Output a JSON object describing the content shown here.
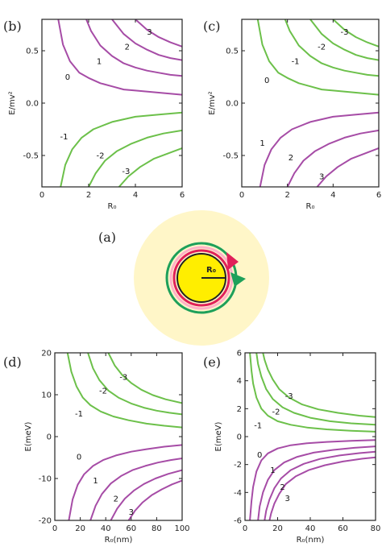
{
  "colors": {
    "purple": "#a64ca6",
    "green": "#6cc04a",
    "axis": "#222222",
    "halo": "#fff6c8",
    "core": "#ffee00",
    "ring_red": "#e0205a",
    "ring_pink": "#ffb0c8",
    "ring_green": "#1ea05a"
  },
  "diagram": {
    "label": "(a)",
    "radius_label": "R₀"
  },
  "chart_data": [
    {
      "type": "line",
      "panel_label": "(b)",
      "xlabel": "R₀",
      "ylabel": "E/mv²",
      "xlim": [
        0,
        6
      ],
      "ylim": [
        -0.8,
        0.8
      ],
      "xticks": [
        0,
        2,
        4,
        6
      ],
      "xtick_labels": [
        "0",
        "2",
        "4",
        "6"
      ],
      "yticks": [
        -0.5,
        0,
        0.5
      ],
      "ytick_labels": [
        "-0.5",
        "0.0",
        "0.5"
      ],
      "series": [
        {
          "label": "0",
          "color": "purple",
          "x": [
            0.7,
            0.9,
            1.2,
            1.6,
            2.0,
            2.5,
            3.0,
            3.5,
            4.0,
            5.0,
            6.0
          ],
          "y": [
            0.8,
            0.56,
            0.4,
            0.29,
            0.24,
            0.19,
            0.16,
            0.13,
            0.12,
            0.1,
            0.08
          ]
        },
        {
          "label": "1",
          "color": "purple",
          "x": [
            1.9,
            2.1,
            2.5,
            3.0,
            3.5,
            4.0,
            4.5,
            5.0,
            5.5,
            6.0
          ],
          "y": [
            0.8,
            0.69,
            0.55,
            0.45,
            0.38,
            0.34,
            0.31,
            0.29,
            0.27,
            0.26
          ]
        },
        {
          "label": "2",
          "color": "purple",
          "x": [
            3.0,
            3.5,
            4.0,
            4.5,
            5.0,
            5.5,
            6.0
          ],
          "y": [
            0.8,
            0.66,
            0.57,
            0.51,
            0.46,
            0.43,
            0.41
          ]
        },
        {
          "label": "3",
          "color": "purple",
          "x": [
            4.0,
            4.5,
            5.0,
            5.5,
            6.0
          ],
          "y": [
            0.8,
            0.7,
            0.63,
            0.58,
            0.54
          ]
        },
        {
          "label": "-1",
          "color": "green",
          "x": [
            0.8,
            1.0,
            1.3,
            1.7,
            2.2,
            3.0,
            4.0,
            5.0,
            6.0
          ],
          "y": [
            -0.8,
            -0.59,
            -0.44,
            -0.33,
            -0.25,
            -0.18,
            -0.13,
            -0.11,
            -0.09
          ]
        },
        {
          "label": "-2",
          "color": "green",
          "x": [
            2.0,
            2.3,
            2.7,
            3.2,
            3.8,
            4.5,
            5.2,
            6.0
          ],
          "y": [
            -0.8,
            -0.67,
            -0.55,
            -0.46,
            -0.39,
            -0.33,
            -0.29,
            -0.26
          ]
        },
        {
          "label": "-3",
          "color": "green",
          "x": [
            3.3,
            3.7,
            4.2,
            4.8,
            5.4,
            6.0
          ],
          "y": [
            -0.8,
            -0.7,
            -0.61,
            -0.53,
            -0.48,
            -0.43
          ]
        }
      ],
      "curve_labels": [
        {
          "text": "3",
          "x": 4.6,
          "y": 0.68
        },
        {
          "text": "2",
          "x": 3.65,
          "y": 0.54
        },
        {
          "text": "1",
          "x": 2.45,
          "y": 0.4
        },
        {
          "text": "0",
          "x": 1.1,
          "y": 0.25
        },
        {
          "text": "-1",
          "x": 0.95,
          "y": -0.32
        },
        {
          "text": "-2",
          "x": 2.5,
          "y": -0.5
        },
        {
          "text": "-3",
          "x": 3.6,
          "y": -0.65
        }
      ]
    },
    {
      "type": "line",
      "panel_label": "(c)",
      "xlabel": "R₀",
      "ylabel": "E/mv²",
      "xlim": [
        0,
        6
      ],
      "ylim": [
        -0.8,
        0.8
      ],
      "xticks": [
        0,
        2,
        4,
        6
      ],
      "xtick_labels": [
        "0",
        "2",
        "4",
        "6"
      ],
      "yticks": [
        -0.5,
        0,
        0.5
      ],
      "ytick_labels": [
        "-0.5",
        "0.0",
        "0.5"
      ],
      "series": [
        {
          "label": "0",
          "color": "green",
          "x": [
            0.7,
            0.9,
            1.2,
            1.6,
            2.0,
            2.5,
            3.0,
            3.5,
            4.0,
            5.0,
            6.0
          ],
          "y": [
            0.8,
            0.56,
            0.4,
            0.29,
            0.24,
            0.19,
            0.16,
            0.13,
            0.12,
            0.1,
            0.08
          ]
        },
        {
          "label": "-1",
          "color": "green",
          "x": [
            1.9,
            2.1,
            2.5,
            3.0,
            3.5,
            4.0,
            4.5,
            5.0,
            5.5,
            6.0
          ],
          "y": [
            0.8,
            0.69,
            0.55,
            0.45,
            0.38,
            0.34,
            0.31,
            0.29,
            0.27,
            0.26
          ]
        },
        {
          "label": "-2",
          "color": "green",
          "x": [
            3.0,
            3.5,
            4.0,
            4.5,
            5.0,
            5.5,
            6.0
          ],
          "y": [
            0.8,
            0.66,
            0.57,
            0.51,
            0.46,
            0.43,
            0.41
          ]
        },
        {
          "label": "-3",
          "color": "green",
          "x": [
            4.0,
            4.5,
            5.0,
            5.5,
            6.0
          ],
          "y": [
            0.8,
            0.7,
            0.63,
            0.58,
            0.54
          ]
        },
        {
          "label": "1",
          "color": "purple",
          "x": [
            0.8,
            1.0,
            1.3,
            1.7,
            2.2,
            3.0,
            4.0,
            5.0,
            6.0
          ],
          "y": [
            -0.8,
            -0.59,
            -0.44,
            -0.33,
            -0.25,
            -0.18,
            -0.13,
            -0.11,
            -0.09
          ]
        },
        {
          "label": "2",
          "color": "purple",
          "x": [
            2.0,
            2.3,
            2.7,
            3.2,
            3.8,
            4.5,
            5.2,
            6.0
          ],
          "y": [
            -0.8,
            -0.67,
            -0.55,
            -0.46,
            -0.39,
            -0.33,
            -0.29,
            -0.26
          ]
        },
        {
          "label": "3",
          "color": "purple",
          "x": [
            3.3,
            3.7,
            4.2,
            4.8,
            5.4,
            6.0
          ],
          "y": [
            -0.8,
            -0.7,
            -0.61,
            -0.53,
            -0.48,
            -0.43
          ]
        }
      ],
      "curve_labels": [
        {
          "text": "-3",
          "x": 4.5,
          "y": 0.68
        },
        {
          "text": "-2",
          "x": 3.5,
          "y": 0.54
        },
        {
          "text": "-1",
          "x": 2.35,
          "y": 0.4
        },
        {
          "text": "0",
          "x": 1.1,
          "y": 0.22
        },
        {
          "text": "1",
          "x": 0.9,
          "y": -0.38
        },
        {
          "text": "2",
          "x": 2.15,
          "y": -0.52
        },
        {
          "text": "3",
          "x": 3.5,
          "y": -0.7
        }
      ]
    },
    {
      "type": "line",
      "panel_label": "(d)",
      "xlabel": "R₀(nm)",
      "ylabel": "E(meV)",
      "xlim": [
        0,
        100
      ],
      "ylim": [
        -20,
        20
      ],
      "xticks": [
        0,
        20,
        40,
        60,
        80,
        100
      ],
      "xtick_labels": [
        "0",
        "20",
        "40",
        "60",
        "80",
        "100"
      ],
      "yticks": [
        -20,
        -10,
        0,
        10,
        20
      ],
      "ytick_labels": [
        "-20",
        "-10",
        "0",
        "10",
        "20"
      ],
      "series": [
        {
          "label": "-1",
          "color": "green",
          "x": [
            10,
            13,
            17,
            22,
            28,
            36,
            46,
            58,
            72,
            86,
            100
          ],
          "y": [
            20,
            15.5,
            12.0,
            9.3,
            7.5,
            6.0,
            4.8,
            3.9,
            3.1,
            2.6,
            2.2
          ]
        },
        {
          "label": "-2",
          "color": "green",
          "x": [
            26,
            30,
            35,
            42,
            50,
            60,
            70,
            80,
            90,
            100
          ],
          "y": [
            20,
            16.3,
            13.5,
            11.0,
            9.3,
            7.9,
            6.9,
            6.2,
            5.7,
            5.3
          ]
        },
        {
          "label": "-3",
          "color": "green",
          "x": [
            42,
            47,
            53,
            60,
            68,
            77,
            87,
            100
          ],
          "y": [
            20,
            17.0,
            14.7,
            12.8,
            11.2,
            9.9,
            8.9,
            8.0
          ]
        },
        {
          "label": "0",
          "color": "purple",
          "x": [
            11,
            14,
            18,
            23,
            30,
            38,
            48,
            60,
            72,
            86,
            100
          ],
          "y": [
            -20,
            -15.0,
            -11.5,
            -9.0,
            -7.0,
            -5.6,
            -4.5,
            -3.6,
            -3.0,
            -2.4,
            -2.0
          ]
        },
        {
          "label": "1",
          "color": "purple",
          "x": [
            28,
            32,
            37,
            44,
            52,
            61,
            71,
            81,
            91,
            100
          ],
          "y": [
            -20,
            -16.5,
            -13.7,
            -11.2,
            -9.4,
            -8.0,
            -7.0,
            -6.2,
            -5.6,
            -5.2
          ]
        },
        {
          "label": "2",
          "color": "purple",
          "x": [
            44,
            49,
            55,
            62,
            70,
            79,
            89,
            100
          ],
          "y": [
            -20,
            -17.2,
            -14.8,
            -12.9,
            -11.3,
            -10.0,
            -8.9,
            -8.0
          ]
        },
        {
          "label": "3",
          "color": "purple",
          "x": [
            58,
            63,
            69,
            76,
            84,
            92,
            100
          ],
          "y": [
            -20,
            -17.7,
            -15.7,
            -14.0,
            -12.6,
            -11.4,
            -10.5
          ]
        }
      ],
      "curve_labels": [
        {
          "text": "-3",
          "x": 54,
          "y": 14.2
        },
        {
          "text": "-2",
          "x": 38,
          "y": 11.0
        },
        {
          "text": "-1",
          "x": 19,
          "y": 5.5
        },
        {
          "text": "0",
          "x": 19,
          "y": -4.8
        },
        {
          "text": "1",
          "x": 32,
          "y": -10.5
        },
        {
          "text": "2",
          "x": 48,
          "y": -14.8
        },
        {
          "text": "3",
          "x": 60,
          "y": -18.0
        }
      ]
    },
    {
      "type": "line",
      "panel_label": "(e)",
      "xlabel": "R₀(nm)",
      "ylabel": "E(meV)",
      "xlim": [
        0,
        80
      ],
      "ylim": [
        -6,
        6
      ],
      "xticks": [
        0,
        20,
        40,
        60,
        80
      ],
      "xtick_labels": [
        "0",
        "20",
        "40",
        "60",
        "80"
      ],
      "yticks": [
        -6,
        -4,
        -2,
        0,
        2,
        4,
        6
      ],
      "ytick_labels": [
        "-6",
        "-4",
        "-2",
        "0",
        "2",
        "4",
        "6"
      ],
      "series": [
        {
          "label": "-1",
          "color": "green",
          "x": [
            3,
            4,
            5,
            7,
            10,
            14,
            20,
            28,
            38,
            50,
            65,
            80
          ],
          "y": [
            6,
            4.7,
            3.8,
            2.8,
            2.0,
            1.5,
            1.1,
            0.85,
            0.65,
            0.52,
            0.42,
            0.35
          ]
        },
        {
          "label": "-2",
          "color": "green",
          "x": [
            7,
            8,
            10,
            13,
            17,
            23,
            30,
            40,
            52,
            65,
            80
          ],
          "y": [
            6,
            5.2,
            4.3,
            3.4,
            2.7,
            2.1,
            1.7,
            1.35,
            1.1,
            0.95,
            0.85
          ]
        },
        {
          "label": "-3",
          "color": "green",
          "x": [
            11,
            12,
            14,
            17,
            21,
            27,
            35,
            45,
            57,
            70,
            80
          ],
          "y": [
            6,
            5.5,
            4.8,
            4.1,
            3.4,
            2.8,
            2.3,
            1.95,
            1.7,
            1.5,
            1.4
          ]
        },
        {
          "label": "0",
          "color": "purple",
          "x": [
            3,
            4,
            5,
            7,
            10,
            14,
            20,
            28,
            38,
            50,
            65,
            80
          ],
          "y": [
            -6,
            -4.6,
            -3.6,
            -2.5,
            -1.7,
            -1.2,
            -0.85,
            -0.62,
            -0.48,
            -0.38,
            -0.3,
            -0.25
          ]
        },
        {
          "label": "1",
          "color": "purple",
          "x": [
            8,
            9,
            11,
            14,
            18,
            24,
            32,
            42,
            54,
            67,
            80
          ],
          "y": [
            -6,
            -5.0,
            -4.0,
            -3.1,
            -2.4,
            -1.85,
            -1.45,
            -1.15,
            -0.95,
            -0.8,
            -0.7
          ]
        },
        {
          "label": "2",
          "color": "purple",
          "x": [
            12,
            13,
            15,
            18,
            22,
            28,
            36,
            46,
            58,
            70,
            80
          ],
          "y": [
            -6,
            -5.3,
            -4.5,
            -3.7,
            -3.0,
            -2.4,
            -1.95,
            -1.6,
            -1.35,
            -1.18,
            -1.08
          ]
        },
        {
          "label": "3",
          "color": "purple",
          "x": [
            15,
            16,
            18,
            21,
            25,
            31,
            39,
            49,
            60,
            72,
            80
          ],
          "y": [
            -6,
            -5.5,
            -4.8,
            -4.1,
            -3.4,
            -2.85,
            -2.4,
            -2.05,
            -1.78,
            -1.58,
            -1.48
          ]
        }
      ],
      "curve_labels": [
        {
          "text": "-3",
          "x": 27,
          "y": 2.9
        },
        {
          "text": "-2",
          "x": 19,
          "y": 1.8
        },
        {
          "text": "-1",
          "x": 8,
          "y": 0.8
        },
        {
          "text": "0",
          "x": 9,
          "y": -1.3
        },
        {
          "text": "1",
          "x": 17,
          "y": -2.4
        },
        {
          "text": "2",
          "x": 23,
          "y": -3.6
        },
        {
          "text": "3",
          "x": 26,
          "y": -4.4
        }
      ]
    }
  ]
}
